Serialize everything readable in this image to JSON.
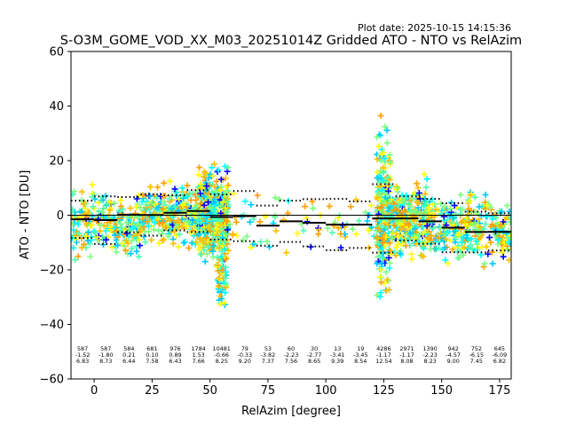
{
  "chart_data": {
    "type": "scatter",
    "plot_date": "Plot date: 2025-10-15 14:15:36",
    "title": "S-O3M_GOME_VOD_XX_M03_20251014Z Gridded ATO - NTO vs RelAzim",
    "xlabel": "RelAzim [degree]",
    "ylabel": "ATO - NTO [DU]",
    "xlim": [
      -10,
      180
    ],
    "ylim": [
      -60,
      60
    ],
    "x_ticks": [
      "0",
      "25",
      "50",
      "75",
      "100",
      "125",
      "150",
      "175"
    ],
    "x_tick_values": [
      0,
      25,
      50,
      75,
      100,
      125,
      150,
      175
    ],
    "y_ticks": [
      "60",
      "40",
      "20",
      "0",
      "−20",
      "−40",
      "−60"
    ],
    "y_tick_values": [
      60,
      40,
      20,
      0,
      -20,
      -40,
      -60
    ],
    "grid": false,
    "zero_line": true,
    "bins": [
      {
        "x": -5,
        "n": "587",
        "mean": "-1.52",
        "std": "6.83"
      },
      {
        "x": 5,
        "n": "587",
        "mean": "-1.80",
        "std": "8.73"
      },
      {
        "x": 15,
        "n": "584",
        "mean": "0.21",
        "std": "6.44"
      },
      {
        "x": 25,
        "n": "681",
        "mean": "0.10",
        "std": "7.58"
      },
      {
        "x": 35,
        "n": "976",
        "mean": "0.89",
        "std": "6.43"
      },
      {
        "x": 45,
        "n": "1784",
        "mean": "1.53",
        "std": "7.66"
      },
      {
        "x": 55,
        "n": "10481",
        "mean": "-0.66",
        "std": "8.25"
      },
      {
        "x": 65,
        "n": "79",
        "mean": "-0.33",
        "std": "9.20"
      },
      {
        "x": 75,
        "n": "53",
        "mean": "-3.82",
        "std": "7.37"
      },
      {
        "x": 85,
        "n": "60",
        "mean": "-2.23",
        "std": "7.56"
      },
      {
        "x": 95,
        "n": "30",
        "mean": "-2.77",
        "std": "8.65"
      },
      {
        "x": 105,
        "n": "13",
        "mean": "-3.41",
        "std": "9.39"
      },
      {
        "x": 115,
        "n": "19",
        "mean": "-3.45",
        "std": "8.54"
      },
      {
        "x": 125,
        "n": "4286",
        "mean": "-1.17",
        "std": "12.54"
      },
      {
        "x": 135,
        "n": "2971",
        "mean": "-1.17",
        "std": "8.08"
      },
      {
        "x": 145,
        "n": "1390",
        "mean": "-2.23",
        "std": "8.23"
      },
      {
        "x": 155,
        "n": "942",
        "mean": "-4.57",
        "std": "9.00"
      },
      {
        "x": 165,
        "n": "752",
        "mean": "-6.15",
        "std": "7.45"
      },
      {
        "x": 175,
        "n": "645",
        "mean": "-6.09",
        "std": "6.82"
      }
    ],
    "point_colors": [
      "#00ffff",
      "#7fff7f",
      "#4dffb3",
      "#ffff00",
      "#ffbf00",
      "#ff9f00",
      "#00c8ff",
      "#0000ff"
    ],
    "point_clusters": [
      {
        "x_min": -10,
        "x_max": 22,
        "y_center": -3,
        "y_spread": 9,
        "count": 260
      },
      {
        "x_min": 22,
        "x_max": 45,
        "y_center": 0,
        "y_spread": 8,
        "count": 260
      },
      {
        "x_min": 45,
        "x_max": 58,
        "y_center": 0,
        "y_spread": 12,
        "count": 380
      },
      {
        "x_min": 53,
        "x_max": 57,
        "y_center": -22,
        "y_spread": 9,
        "count": 60
      },
      {
        "x_min": 58,
        "x_max": 122,
        "y_center": -3,
        "y_spread": 10,
        "count": 80
      },
      {
        "x_min": 122,
        "x_max": 128,
        "y_center": 0,
        "y_spread": 22,
        "count": 220
      },
      {
        "x_min": 128,
        "x_max": 145,
        "y_center": -2,
        "y_spread": 10,
        "count": 280
      },
      {
        "x_min": 145,
        "x_max": 180,
        "y_center": -5,
        "y_spread": 9,
        "count": 300
      }
    ]
  }
}
